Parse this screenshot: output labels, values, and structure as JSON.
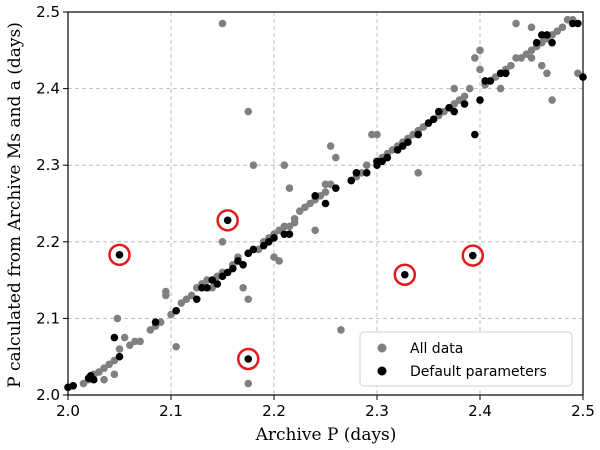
{
  "chart_data": {
    "type": "scatter",
    "xlabel": "Archive P (days)",
    "ylabel": "P calculated from Archive Ms and a (days)",
    "xlim": [
      2.0,
      2.5
    ],
    "ylim": [
      2.0,
      2.5
    ],
    "xticks": [
      "2.0",
      "2.1",
      "2.2",
      "2.3",
      "2.4",
      "2.5"
    ],
    "yticks": [
      "2.0",
      "2.1",
      "2.2",
      "2.3",
      "2.4",
      "2.5"
    ],
    "grid": true,
    "legend_position": "bottom-right",
    "colors": {
      "all": "#808080",
      "default": "#000000",
      "highlight": "#e31a1c"
    },
    "series": [
      {
        "name": "All data",
        "color": "#808080",
        "points": [
          [
            2.005,
            2.012
          ],
          [
            2.015,
            2.015
          ],
          [
            2.02,
            2.02
          ],
          [
            2.025,
            2.027
          ],
          [
            2.03,
            2.03
          ],
          [
            2.035,
            2.035
          ],
          [
            2.04,
            2.04
          ],
          [
            2.045,
            2.045
          ],
          [
            2.05,
            2.06
          ],
          [
            2.048,
            2.1
          ],
          [
            2.055,
            2.075
          ],
          [
            2.06,
            2.065
          ],
          [
            2.065,
            2.07
          ],
          [
            2.07,
            2.07
          ],
          [
            2.045,
            2.027
          ],
          [
            2.035,
            2.02
          ],
          [
            2.08,
            2.085
          ],
          [
            2.085,
            2.09
          ],
          [
            2.09,
            2.095
          ],
          [
            2.095,
            2.13
          ],
          [
            2.095,
            2.135
          ],
          [
            2.1,
            2.105
          ],
          [
            2.105,
            2.11
          ],
          [
            2.105,
            2.063
          ],
          [
            2.11,
            2.12
          ],
          [
            2.115,
            2.125
          ],
          [
            2.12,
            2.13
          ],
          [
            2.125,
            2.14
          ],
          [
            2.13,
            2.145
          ],
          [
            2.135,
            2.15
          ],
          [
            2.14,
            2.14
          ],
          [
            2.145,
            2.155
          ],
          [
            2.15,
            2.16
          ],
          [
            2.15,
            2.2
          ],
          [
            2.16,
            2.17
          ],
          [
            2.165,
            2.18
          ],
          [
            2.17,
            2.14
          ],
          [
            2.175,
            2.185
          ],
          [
            2.18,
            2.3
          ],
          [
            2.175,
            2.37
          ],
          [
            2.15,
            2.485
          ],
          [
            2.185,
            2.19
          ],
          [
            2.19,
            2.2
          ],
          [
            2.195,
            2.205
          ],
          [
            2.2,
            2.21
          ],
          [
            2.205,
            2.215
          ],
          [
            2.21,
            2.22
          ],
          [
            2.215,
            2.22
          ],
          [
            2.2,
            2.18
          ],
          [
            2.205,
            2.175
          ],
          [
            2.21,
            2.3
          ],
          [
            2.215,
            2.27
          ],
          [
            2.22,
            2.23
          ],
          [
            2.225,
            2.24
          ],
          [
            2.23,
            2.245
          ],
          [
            2.235,
            2.25
          ],
          [
            2.24,
            2.255
          ],
          [
            2.245,
            2.26
          ],
          [
            2.25,
            2.265
          ],
          [
            2.255,
            2.275
          ],
          [
            2.255,
            2.325
          ],
          [
            2.26,
            2.31
          ],
          [
            2.265,
            2.085
          ],
          [
            2.275,
            2.28
          ],
          [
            2.28,
            2.285
          ],
          [
            2.285,
            2.29
          ],
          [
            2.29,
            2.3
          ],
          [
            2.295,
            2.34
          ],
          [
            2.3,
            2.305
          ],
          [
            2.305,
            2.31
          ],
          [
            2.31,
            2.315
          ],
          [
            2.315,
            2.32
          ],
          [
            2.32,
            2.325
          ],
          [
            2.325,
            2.33
          ],
          [
            2.33,
            2.335
          ],
          [
            2.335,
            2.34
          ],
          [
            2.34,
            2.29
          ],
          [
            2.34,
            2.345
          ],
          [
            2.345,
            2.35
          ],
          [
            2.35,
            2.355
          ],
          [
            2.355,
            2.36
          ],
          [
            2.36,
            2.365
          ],
          [
            2.365,
            2.37
          ],
          [
            2.37,
            2.375
          ],
          [
            2.375,
            2.38
          ],
          [
            2.375,
            2.4
          ],
          [
            2.38,
            2.385
          ],
          [
            2.385,
            2.39
          ],
          [
            2.39,
            2.4
          ],
          [
            2.395,
            2.44
          ],
          [
            2.4,
            2.45
          ],
          [
            2.405,
            2.405
          ],
          [
            2.41,
            2.41
          ],
          [
            2.415,
            2.415
          ],
          [
            2.42,
            2.42
          ],
          [
            2.425,
            2.425
          ],
          [
            2.43,
            2.43
          ],
          [
            2.435,
            2.44
          ],
          [
            2.44,
            2.44
          ],
          [
            2.445,
            2.445
          ],
          [
            2.45,
            2.45
          ],
          [
            2.455,
            2.455
          ],
          [
            2.46,
            2.46
          ],
          [
            2.465,
            2.465
          ],
          [
            2.47,
            2.47
          ],
          [
            2.475,
            2.475
          ],
          [
            2.48,
            2.48
          ],
          [
            2.485,
            2.49
          ],
          [
            2.49,
            2.49
          ],
          [
            2.47,
            2.385
          ],
          [
            2.465,
            2.42
          ],
          [
            2.495,
            2.42
          ],
          [
            2.45,
            2.48
          ],
          [
            2.435,
            2.485
          ],
          [
            2.46,
            2.43
          ],
          [
            2.175,
            2.125
          ],
          [
            2.175,
            2.015
          ],
          [
            2.22,
            2.225
          ],
          [
            2.24,
            2.215
          ],
          [
            2.3,
            2.34
          ],
          [
            2.25,
            2.275
          ],
          [
            2.31,
            2.31
          ],
          [
            2.42,
            2.4
          ],
          [
            2.4,
            2.425
          ],
          [
            2.45,
            2.44
          ]
        ]
      },
      {
        "name": "Default parameters",
        "color": "#000000",
        "points": [
          [
            2.0,
            2.01
          ],
          [
            2.005,
            2.012
          ],
          [
            2.02,
            2.022
          ],
          [
            2.022,
            2.025
          ],
          [
            2.025,
            2.02
          ],
          [
            2.045,
            2.075
          ],
          [
            2.05,
            2.05
          ],
          [
            2.05,
            2.183
          ],
          [
            2.085,
            2.095
          ],
          [
            2.105,
            2.11
          ],
          [
            2.125,
            2.125
          ],
          [
            2.13,
            2.14
          ],
          [
            2.135,
            2.14
          ],
          [
            2.14,
            2.15
          ],
          [
            2.145,
            2.145
          ],
          [
            2.15,
            2.155
          ],
          [
            2.155,
            2.16
          ],
          [
            2.16,
            2.165
          ],
          [
            2.165,
            2.175
          ],
          [
            2.17,
            2.17
          ],
          [
            2.175,
            2.185
          ],
          [
            2.175,
            2.047
          ],
          [
            2.18,
            2.19
          ],
          [
            2.155,
            2.228
          ],
          [
            2.19,
            2.195
          ],
          [
            2.195,
            2.2
          ],
          [
            2.2,
            2.205
          ],
          [
            2.21,
            2.21
          ],
          [
            2.215,
            2.21
          ],
          [
            2.24,
            2.26
          ],
          [
            2.25,
            2.25
          ],
          [
            2.26,
            2.27
          ],
          [
            2.275,
            2.28
          ],
          [
            2.28,
            2.29
          ],
          [
            2.29,
            2.29
          ],
          [
            2.3,
            2.3
          ],
          [
            2.305,
            2.305
          ],
          [
            2.31,
            2.31
          ],
          [
            2.32,
            2.32
          ],
          [
            2.325,
            2.325
          ],
          [
            2.327,
            2.157
          ],
          [
            2.33,
            2.33
          ],
          [
            2.34,
            2.34
          ],
          [
            2.35,
            2.355
          ],
          [
            2.355,
            2.36
          ],
          [
            2.36,
            2.37
          ],
          [
            2.37,
            2.375
          ],
          [
            2.375,
            2.37
          ],
          [
            2.385,
            2.38
          ],
          [
            2.393,
            2.182
          ],
          [
            2.395,
            2.34
          ],
          [
            2.4,
            2.385
          ],
          [
            2.405,
            2.41
          ],
          [
            2.41,
            2.41
          ],
          [
            2.42,
            2.42
          ],
          [
            2.425,
            2.42
          ],
          [
            2.455,
            2.46
          ],
          [
            2.46,
            2.47
          ],
          [
            2.465,
            2.47
          ],
          [
            2.47,
            2.46
          ],
          [
            2.49,
            2.485
          ],
          [
            2.495,
            2.485
          ],
          [
            2.5,
            2.415
          ],
          [
            2.3,
            2.305
          ]
        ]
      }
    ],
    "highlighted_points": [
      [
        2.05,
        2.183
      ],
      [
        2.155,
        2.228
      ],
      [
        2.175,
        2.047
      ],
      [
        2.327,
        2.157
      ],
      [
        2.393,
        2.182
      ]
    ]
  }
}
